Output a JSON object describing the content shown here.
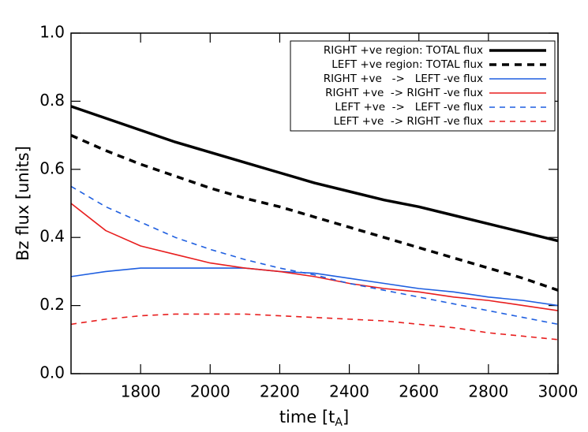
{
  "chart_data": {
    "type": "line",
    "y_label": "Bz flux [units]",
    "x_label": {
      "text": "time [t",
      "subscript": "A",
      "suffix": "]"
    },
    "x": [
      1600,
      1700,
      1800,
      1900,
      2000,
      2100,
      2200,
      2300,
      2400,
      2500,
      2600,
      2700,
      2800,
      2900,
      3000
    ],
    "xlim": [
      1600,
      3000
    ],
    "xticks": [
      1800,
      2000,
      2200,
      2400,
      2600,
      2800,
      3000
    ],
    "ylim": [
      0,
      1
    ],
    "yticks": [
      {
        "value": 0,
        "label": "0.0"
      },
      0.2,
      0.4,
      0.6,
      0.8,
      {
        "value": 1,
        "label": "1.0"
      }
    ],
    "legend": "upper right",
    "series": [
      {
        "name": "RIGHT +ve region: TOTAL flux",
        "color": "#000000",
        "linestyle": "solid",
        "width": 3.5,
        "values": [
          0.785,
          0.75,
          0.715,
          0.68,
          0.65,
          0.62,
          0.59,
          0.56,
          0.535,
          0.51,
          0.49,
          0.465,
          0.44,
          0.415,
          0.39
        ]
      },
      {
        "name": "LEFT +ve region: TOTAL flux",
        "color": "#000000",
        "linestyle": "dashed",
        "width": 3.5,
        "values": [
          0.7,
          0.655,
          0.615,
          0.58,
          0.545,
          0.515,
          0.49,
          0.46,
          0.43,
          0.4,
          0.37,
          0.34,
          0.31,
          0.28,
          0.245
        ]
      },
      {
        "name": "RIGHT +ve   ->   LEFT -ve flux",
        "color": "#1f5fe0",
        "linestyle": "solid",
        "width": 1.6,
        "values": [
          0.285,
          0.3,
          0.31,
          0.31,
          0.31,
          0.31,
          0.3,
          0.295,
          0.28,
          0.265,
          0.25,
          0.24,
          0.225,
          0.215,
          0.2
        ]
      },
      {
        "name": "RIGHT +ve  -> RIGHT -ve flux",
        "color": "#e81e1e",
        "linestyle": "solid",
        "width": 1.6,
        "values": [
          0.5,
          0.42,
          0.375,
          0.35,
          0.325,
          0.31,
          0.3,
          0.285,
          0.265,
          0.25,
          0.24,
          0.225,
          0.215,
          0.2,
          0.185
        ]
      },
      {
        "name": "LEFT +ve  ->   LEFT -ve flux",
        "color": "#1f5fe0",
        "linestyle": "dashed",
        "width": 1.6,
        "values": [
          0.55,
          0.49,
          0.445,
          0.4,
          0.365,
          0.335,
          0.31,
          0.29,
          0.265,
          0.245,
          0.225,
          0.205,
          0.185,
          0.165,
          0.145
        ]
      },
      {
        "name": "LEFT +ve  -> RIGHT -ve flux",
        "color": "#e81e1e",
        "linestyle": "dashed",
        "width": 1.6,
        "values": [
          0.145,
          0.16,
          0.17,
          0.175,
          0.175,
          0.175,
          0.17,
          0.165,
          0.16,
          0.155,
          0.145,
          0.135,
          0.12,
          0.11,
          0.1
        ]
      }
    ]
  }
}
